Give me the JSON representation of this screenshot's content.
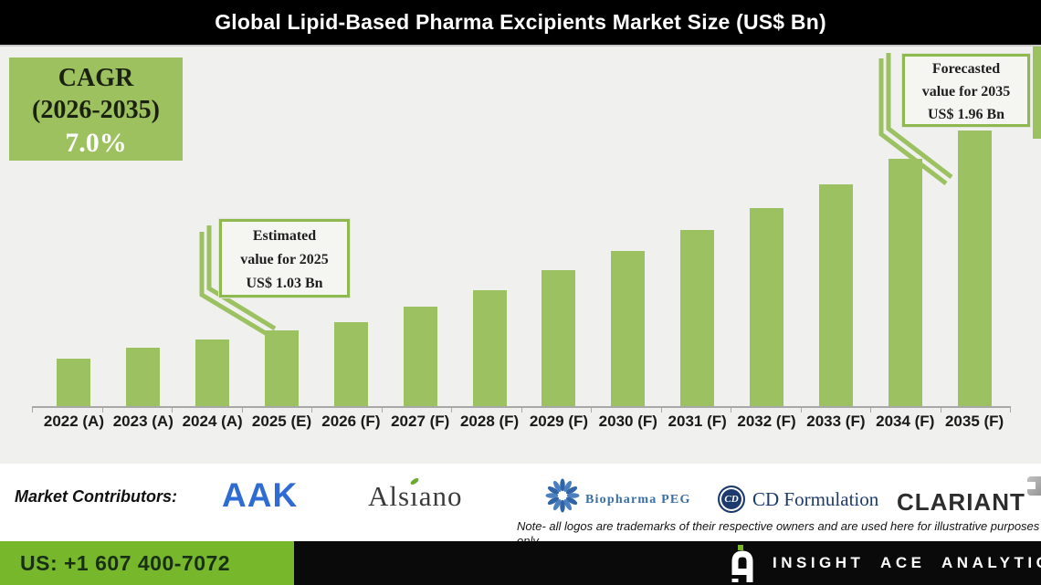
{
  "title": "Global Lipid-Based Pharma Excipients Market Size (US$ Bn)",
  "cagr_box": {
    "line1": "CAGR",
    "line2": "(2026-2035)",
    "line3": "7.0%"
  },
  "callouts": {
    "estimated": {
      "line1": "Estimated",
      "line2": "value for 2025",
      "line3": "US$ 1.03 Bn"
    },
    "forecasted": {
      "line1": "Forecasted",
      "line2": "value for 2035",
      "line3": "US$ 1.96 Bn"
    }
  },
  "chart_data": {
    "type": "bar",
    "title": "Global Lipid-Based Pharma Excipients Market Size (US$ Bn)",
    "categories": [
      "2022 (A)",
      "2023 (A)",
      "2024 (A)",
      "2025 (E)",
      "2026 (F)",
      "2027 (F)",
      "2028 (F)",
      "2029 (F)",
      "2030 (F)",
      "2031 (F)",
      "2032 (F)",
      "2033 (F)",
      "2034 (F)",
      "2035 (F)"
    ],
    "values": [
      0.9,
      0.95,
      0.99,
      1.03,
      1.07,
      1.14,
      1.22,
      1.31,
      1.4,
      1.5,
      1.6,
      1.71,
      1.83,
      1.96
    ],
    "unit": "US$ Bn",
    "xlabel": "",
    "ylabel": "",
    "ylim": [
      0.68,
      2.35
    ],
    "grid": false,
    "legend": false,
    "bar_color": "#9cc161",
    "cagr": "7.0%",
    "cagr_period": "2026-2035",
    "annotations": [
      {
        "category": "2025 (E)",
        "label": "Estimated value for 2025 US$ 1.03 Bn"
      },
      {
        "category": "2035 (F)",
        "label": "Forecasted value for 2035 US$ 1.96 Bn"
      }
    ]
  },
  "contributors": {
    "label": "Market Contributors:",
    "logos": [
      {
        "name": "AAK",
        "text": "AAK"
      },
      {
        "name": "Alsiano",
        "text": "Alsiano",
        "parts": [
          "Als",
          "ı",
          "ano"
        ]
      },
      {
        "name": "Biopharma PEG",
        "text": "Biopharma PEG"
      },
      {
        "name": "CD Formulation",
        "text": "CD Formulation",
        "badge": "CD"
      },
      {
        "name": "CLARIANT",
        "text": "CLARIANT"
      }
    ],
    "note_line1": "Note- all logos are trademarks of their respective owners and are used here for illustrative purposes",
    "note_line2": "only"
  },
  "footer": {
    "phone": "US: +1 607 400-7072",
    "brand": "INSIGHT ACE ANALYTIC"
  },
  "colors": {
    "bar_green": "#9cc161",
    "cagr_green": "#9cc15e",
    "callout_border_green": "#8eb94e",
    "footer_green": "#77b72c",
    "chart_background": "#f0f0ee",
    "title_background": "#000000",
    "aak_blue": "#2e6bd3",
    "biopharma_blue": "#3a6fa8",
    "cd_navy": "#1d3a6e",
    "clariant_gray": "#2d2d2d"
  }
}
